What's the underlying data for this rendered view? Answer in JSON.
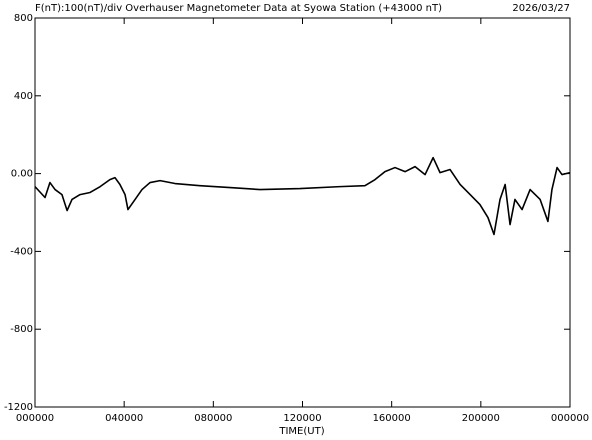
{
  "chart_data": {
    "type": "line",
    "title": "F(nT):100(nT)/div  Overhauser Magnetometer Data at Syowa Station (+43000 nT)",
    "date": "2026/03/27",
    "x_label": "TIME(UT)",
    "xlim": [
      0,
      24
    ],
    "xticks": [
      {
        "value": 0,
        "label": "000000"
      },
      {
        "value": 4,
        "label": "040000"
      },
      {
        "value": 8,
        "label": "080000"
      },
      {
        "value": 12,
        "label": "120000"
      },
      {
        "value": 16,
        "label": "160000"
      },
      {
        "value": 20,
        "label": "200000"
      },
      {
        "value": 24,
        "label": "000000"
      }
    ],
    "ylim": [
      -1200,
      800
    ],
    "yticks": [
      {
        "value": -1200,
        "label": "-1200"
      },
      -800,
      -400,
      {
        "value": 0,
        "label": "0.00"
      },
      400,
      800
    ],
    "color": "#000000",
    "x": [
      0,
      0.45,
      0.67,
      0.9,
      1.21,
      1.44,
      1.66,
      2.02,
      2.47,
      2.92,
      3.36,
      3.59,
      3.81,
      4.04,
      4.17,
      4.49,
      4.8,
      5.16,
      5.61,
      6.28,
      7.4,
      8.75,
      10.09,
      11.89,
      13.68,
      14.8,
      15.25,
      15.7,
      16.15,
      16.6,
      17.05,
      17.5,
      17.86,
      18.17,
      18.62,
      19.07,
      19.52,
      19.96,
      20.32,
      20.59,
      20.86,
      21.09,
      21.31,
      21.53,
      21.85,
      22.21,
      22.66,
      23.01,
      23.19,
      23.42,
      23.64,
      24
    ],
    "values": [
      -67,
      -123,
      -46,
      -82,
      -108,
      -190,
      -133,
      -108,
      -97,
      -67,
      -31,
      -21,
      -56,
      -108,
      -185,
      -133,
      -82,
      -46,
      -36,
      -51,
      -62,
      -72,
      -82,
      -77,
      -67,
      -62,
      -31,
      10,
      31,
      10,
      36,
      -5,
      82,
      5,
      21,
      -56,
      -108,
      -159,
      -226,
      -313,
      -133,
      -56,
      -262,
      -133,
      -185,
      -82,
      -133,
      -246,
      -82,
      31,
      -5,
      5
    ]
  }
}
